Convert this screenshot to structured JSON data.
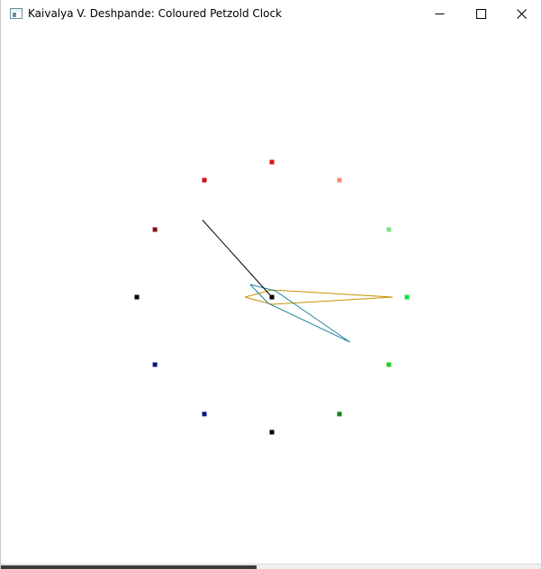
{
  "window": {
    "title": "Kaivalya V. Deshpande: Coloured Petzold Clock",
    "icon": "app-window-icon",
    "controls": {
      "minimize_icon": "minimize-icon",
      "maximize_icon": "maximize-icon",
      "close_icon": "close-icon"
    }
  },
  "clock": {
    "hour_marks": [
      {
        "hour": 12,
        "color": "#e01010"
      },
      {
        "hour": 1,
        "color": "#f08878"
      },
      {
        "hour": 2,
        "color": "#80e080"
      },
      {
        "hour": 3,
        "color": "#10e040"
      },
      {
        "hour": 4,
        "color": "#20d020"
      },
      {
        "hour": 5,
        "color": "#108010"
      },
      {
        "hour": 6,
        "color": "#000000"
      },
      {
        "hour": 7,
        "color": "#001888"
      },
      {
        "hour": 8,
        "color": "#001888"
      },
      {
        "hour": 9,
        "color": "#000000"
      },
      {
        "hour": 10,
        "color": "#801010"
      },
      {
        "hour": 11,
        "color": "#d01010"
      }
    ],
    "center_color": "#000000",
    "hands": {
      "hour": {
        "color": "#c89000",
        "minutes": 15
      },
      "minute": {
        "color": "#208898",
        "minutes": 20
      },
      "second": {
        "color": "#000000",
        "minutes": 53
      }
    }
  }
}
